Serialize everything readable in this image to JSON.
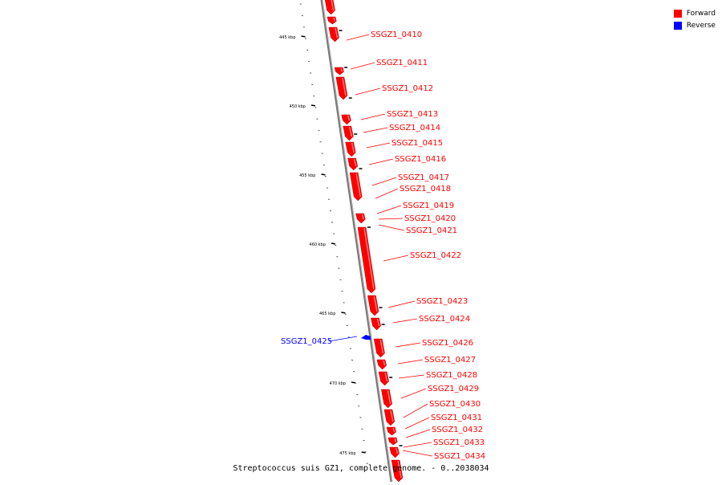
{
  "legend": {
    "items": [
      {
        "label": "Forward",
        "color": "#ff0000"
      },
      {
        "label": "Reverse",
        "color": "#0000ff"
      }
    ]
  },
  "caption": "Streptococcus suis GZ1, complete genome. - 0..2038034",
  "colors": {
    "forward": "#ff0000",
    "reverse": "#0000ff",
    "backbone": "#777777"
  },
  "tick_labels": [
    "445 kbp",
    "450 kbp",
    "455 kbp",
    "460 kbp",
    "465 kbp",
    "470 kbp",
    "475 kbp"
  ],
  "genes": [
    {
      "name": "SSGZ1_0410",
      "strand": "forward"
    },
    {
      "name": "SSGZ1_0411",
      "strand": "forward"
    },
    {
      "name": "SSGZ1_0412",
      "strand": "forward"
    },
    {
      "name": "SSGZ1_0413",
      "strand": "forward"
    },
    {
      "name": "SSGZ1_0414",
      "strand": "forward"
    },
    {
      "name": "SSGZ1_0415",
      "strand": "forward"
    },
    {
      "name": "SSGZ1_0416",
      "strand": "forward"
    },
    {
      "name": "SSGZ1_0417",
      "strand": "forward"
    },
    {
      "name": "SSGZ1_0418",
      "strand": "forward"
    },
    {
      "name": "SSGZ1_0419",
      "strand": "forward"
    },
    {
      "name": "SSGZ1_0420",
      "strand": "forward"
    },
    {
      "name": "SSGZ1_0421",
      "strand": "forward"
    },
    {
      "name": "SSGZ1_0422",
      "strand": "forward"
    },
    {
      "name": "SSGZ1_0423",
      "strand": "forward"
    },
    {
      "name": "SSGZ1_0424",
      "strand": "forward"
    },
    {
      "name": "SSGZ1_0425",
      "strand": "reverse"
    },
    {
      "name": "SSGZ1_0426",
      "strand": "forward"
    },
    {
      "name": "SSGZ1_0427",
      "strand": "forward"
    },
    {
      "name": "SSGZ1_0428",
      "strand": "forward"
    },
    {
      "name": "SSGZ1_0429",
      "strand": "forward"
    },
    {
      "name": "SSGZ1_0430",
      "strand": "forward"
    },
    {
      "name": "SSGZ1_0431",
      "strand": "forward"
    },
    {
      "name": "SSGZ1_0432",
      "strand": "forward"
    },
    {
      "name": "SSGZ1_0433",
      "strand": "forward"
    },
    {
      "name": "SSGZ1_0434",
      "strand": "forward"
    }
  ]
}
